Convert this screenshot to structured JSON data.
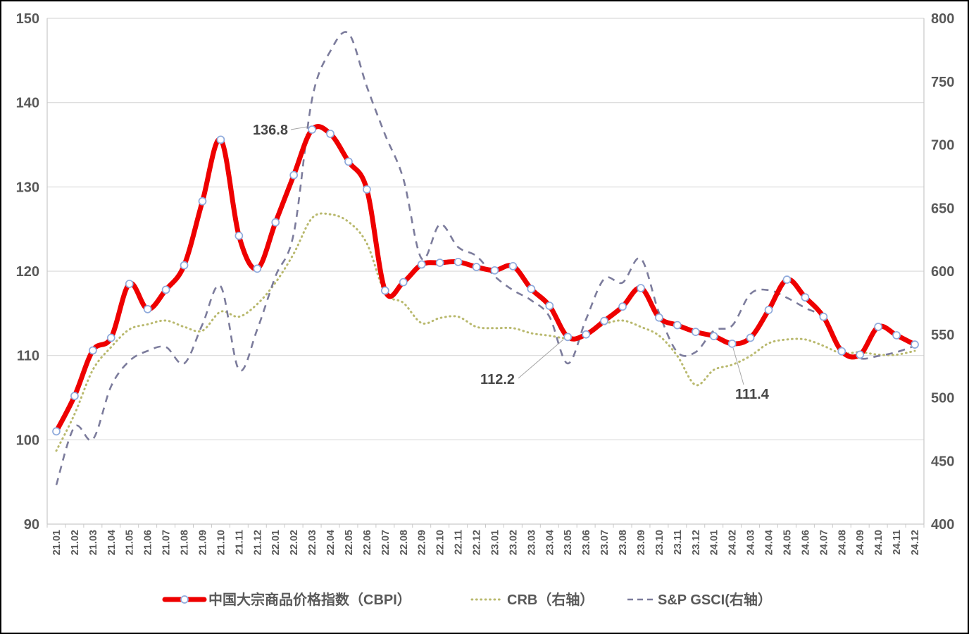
{
  "chart_data": {
    "type": "line",
    "title": "",
    "x_labels": [
      "21.01",
      "21.02",
      "21.03",
      "21.04",
      "21.05",
      "21.06",
      "21.07",
      "21.08",
      "21.09",
      "21.10",
      "21.11",
      "21.12",
      "22.01",
      "22.02",
      "22.03",
      "22.04",
      "22.05",
      "22.06",
      "22.07",
      "22.08",
      "22.09",
      "22.10",
      "22.11",
      "22.12",
      "23.01",
      "23.02",
      "23.03",
      "23.04",
      "23.05",
      "23.06",
      "23.07",
      "23.08",
      "23.09",
      "23.10",
      "23.11",
      "23.12",
      "24.01",
      "24.02",
      "24.03",
      "24.04",
      "24.05",
      "24.06",
      "24.07",
      "24.08",
      "24.09",
      "24.10",
      "24.11",
      "24.12"
    ],
    "left_axis": {
      "min": 90,
      "max": 150,
      "ticks": [
        90,
        100,
        110,
        120,
        130,
        140,
        150
      ]
    },
    "right_axis": {
      "min": 400,
      "max": 800,
      "ticks": [
        400,
        450,
        500,
        550,
        600,
        650,
        700,
        750,
        800
      ]
    },
    "grid": "horizontal",
    "legend_position": "bottom",
    "series": [
      {
        "name": "中国大宗商品价格指数（CBPI）",
        "axis": "left",
        "style": "solid-markers",
        "color": "#ee0000",
        "marker_fill": "#ffffff",
        "marker_stroke": "#8faadc",
        "values": [
          101.0,
          105.2,
          110.6,
          112.1,
          118.5,
          115.5,
          117.8,
          120.7,
          128.3,
          135.6,
          124.2,
          120.3,
          125.8,
          131.4,
          136.8,
          136.3,
          133.0,
          129.7,
          117.7,
          118.7,
          120.8,
          121.0,
          121.1,
          120.5,
          120.1,
          120.6,
          117.9,
          115.9,
          112.2,
          112.5,
          114.1,
          115.8,
          118.0,
          114.5,
          113.6,
          112.8,
          112.3,
          111.4,
          112.1,
          115.4,
          119.0,
          116.9,
          114.6,
          110.5,
          110.1,
          113.4,
          112.4,
          111.3
        ]
      },
      {
        "name": "CRB（右轴）",
        "axis": "right",
        "style": "dotted",
        "color": "#b9b96e",
        "values": [
          458,
          487,
          522,
          540,
          554,
          558,
          561,
          556,
          553,
          568,
          564,
          574,
          591,
          614,
          642,
          645,
          639,
          622,
          583,
          575,
          559,
          563,
          564,
          556,
          555,
          555,
          551,
          549,
          547,
          550,
          558,
          561,
          556,
          549,
          533,
          510,
          522,
          526,
          533,
          543,
          546,
          546,
          541,
          535,
          536,
          534,
          534,
          537
        ]
      },
      {
        "name": "S&P GSCI(右轴）",
        "axis": "right",
        "style": "dashed",
        "color": "#7c7c9c",
        "values": [
          431,
          477,
          467,
          509,
          529,
          537,
          540,
          527,
          558,
          588,
          522,
          554,
          596,
          630,
          736,
          774,
          788,
          746,
          708,
          673,
          610,
          637,
          619,
          612,
          596,
          585,
          577,
          564,
          527,
          562,
          594,
          591,
          610,
          567,
          536,
          536,
          553,
          557,
          582,
          585,
          579,
          571,
          563,
          539,
          531,
          533,
          536,
          541
        ]
      }
    ],
    "annotations": [
      {
        "text": "136.8",
        "series": 0,
        "index": 14
      },
      {
        "text": "112.2",
        "series": 0,
        "index": 28
      },
      {
        "text": "111.4",
        "series": 0,
        "index": 37
      }
    ]
  },
  "legend": {
    "items": [
      {
        "label": "中国大宗商品价格指数（CBPI）",
        "swatch": "line-marker"
      },
      {
        "label": "CRB（右轴）",
        "swatch": "dotted"
      },
      {
        "label": "S&P GSCI(右轴）",
        "swatch": "dashed"
      }
    ]
  },
  "colors": {
    "grid": "#d9d9d9",
    "frame": "#c9c9c9",
    "axis_text": "#595959",
    "annotation_text": "#474747",
    "leader_line": "#a6a6a6",
    "border": "#000000"
  }
}
